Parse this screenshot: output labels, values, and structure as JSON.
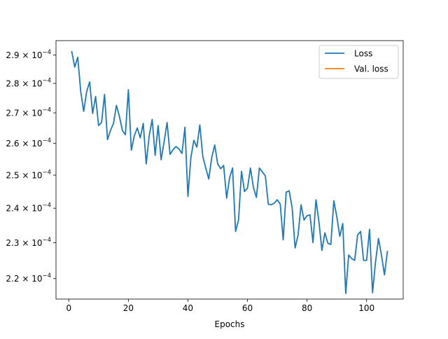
{
  "chart_data": {
    "type": "line",
    "title": "",
    "xlabel": "Epochs",
    "ylabel": "",
    "yscale": "log",
    "xlim": [
      -4.3,
      112.3
    ],
    "ylim": [
      0.0002145,
      0.0002952
    ],
    "grid": false,
    "legend_position": "top-right",
    "x_ticks": [
      0,
      20,
      40,
      60,
      80,
      100
    ],
    "x_tick_labels": [
      "0",
      "20",
      "40",
      "60",
      "80",
      "100"
    ],
    "y_ticks": [
      0.00022,
      0.00023,
      0.00024,
      0.00025,
      0.00026,
      0.00027,
      0.00028,
      0.00029
    ],
    "y_tick_labels": [
      {
        "mantissa": "2.2",
        "base": "10",
        "exp": "−4"
      },
      {
        "mantissa": "2.3",
        "base": "10",
        "exp": "−4"
      },
      {
        "mantissa": "2.4",
        "base": "10",
        "exp": "−4"
      },
      {
        "mantissa": "2.5",
        "base": "10",
        "exp": "−4"
      },
      {
        "mantissa": "2.6",
        "base": "10",
        "exp": "−4"
      },
      {
        "mantissa": "2.7",
        "base": "10",
        "exp": "−4"
      },
      {
        "mantissa": "2.8",
        "base": "10",
        "exp": "−4"
      },
      {
        "mantissa": "2.9",
        "base": "10",
        "exp": "−4"
      }
    ],
    "series": [
      {
        "name": "Loss",
        "color": "#1f77b4",
        "x_start": 1,
        "values": [
          0.0002912,
          0.0002857,
          0.0002892,
          0.0002772,
          0.0002705,
          0.0002772,
          0.0002805,
          0.0002698,
          0.0002755,
          0.0002658,
          0.0002668,
          0.0002762,
          0.0002612,
          0.0002642,
          0.0002665,
          0.0002725,
          0.0002688,
          0.0002642,
          0.0002628,
          0.0002778,
          0.0002578,
          0.0002625,
          0.000265,
          0.0002618,
          0.0002665,
          0.0002535,
          0.0002625,
          0.0002678,
          0.0002562,
          0.0002658,
          0.0002548,
          0.0002605,
          0.0002668,
          0.0002565,
          0.000258,
          0.000259,
          0.0002582,
          0.0002568,
          0.0002652,
          0.0002435,
          0.0002555,
          0.000261,
          0.0002588,
          0.000266,
          0.0002558,
          0.0002522,
          0.0002488,
          0.0002555,
          0.0002595,
          0.0002535,
          0.000252,
          0.000253,
          0.000243,
          0.0002492,
          0.0002522,
          0.0002332,
          0.0002365,
          0.0002512,
          0.000245,
          0.000246,
          0.0002522,
          0.0002462,
          0.0002432,
          0.0002522,
          0.000251,
          0.0002498,
          0.0002412,
          0.000241,
          0.0002415,
          0.0002425,
          0.0002412,
          0.0002308,
          0.0002448,
          0.0002452,
          0.0002402,
          0.0002285,
          0.0002322,
          0.000241,
          0.0002365,
          0.0002378,
          0.000238,
          0.00023,
          0.0002425,
          0.000236,
          0.0002278,
          0.0002328,
          0.0002298,
          0.0002295,
          0.0002422,
          0.0002375,
          0.0002318,
          0.0002355,
          0.000216,
          0.0002265,
          0.0002255,
          0.000225,
          0.0002322,
          0.0002332,
          0.000225,
          0.000225,
          0.0002338,
          0.0002162,
          0.0002245,
          0.0002312,
          0.0002265,
          0.000221,
          0.0002275
        ]
      },
      {
        "name": "Val. loss",
        "color": "#ff7f0e",
        "x_start": 1,
        "values": []
      }
    ]
  }
}
